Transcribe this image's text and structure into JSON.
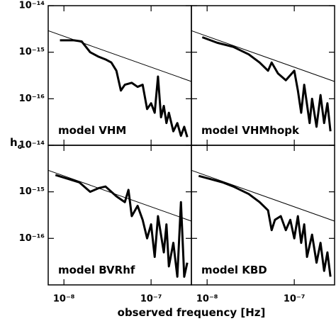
{
  "chart_data": {
    "type": "line",
    "xlabel": "observed frequency [Hz]",
    "ylabel": {
      "main": "h",
      "sub": "c"
    },
    "xscale": "log",
    "yscale": "log",
    "xlim": [
      6.6e-09,
      2.9e-07
    ],
    "ylim": [
      1e-17,
      1e-14
    ],
    "xticks": [
      {
        "value": 1e-08,
        "label": "10⁻⁸"
      },
      {
        "value": 1e-07,
        "label": "10⁻⁷"
      }
    ],
    "yticks": [
      {
        "value": 1e-16,
        "label": "10⁻¹⁶"
      },
      {
        "value": 1e-15,
        "label": "10⁻¹⁵"
      },
      {
        "value": 1e-14,
        "label": "10⁻¹⁴"
      }
    ],
    "panels": [
      {
        "label": "model VHM",
        "series": [
          {
            "color": "#000000",
            "line_width": 3,
            "x": [
              9e-09,
              1.3e-08,
              1.6e-08,
              2e-08,
              2.5e-08,
              3e-08,
              3.5e-08,
              4e-08,
              4.5e-08,
              5e-08,
              6e-08,
              7e-08,
              8e-08,
              9e-08,
              1e-07,
              1.1e-07,
              1.2e-07,
              1.3e-07,
              1.4e-07,
              1.5e-07,
              1.6e-07,
              1.8e-07,
              2e-07,
              2.2e-07,
              2.4e-07,
              2.6e-07
            ],
            "values": [
              1.8e-15,
              1.8e-15,
              1.7e-15,
              1e-15,
              8e-16,
              7e-16,
              6e-16,
              4e-16,
              1.5e-16,
              2e-16,
              2.2e-16,
              1.8e-16,
              2e-16,
              6e-17,
              8e-17,
              5e-17,
              3e-16,
              4e-17,
              7e-17,
              3e-17,
              5e-17,
              2e-17,
              3e-17,
              1.6e-17,
              2.5e-17,
              1.5e-17
            ]
          },
          {
            "color": "#000000",
            "line_width": 1,
            "x": [
              6.6e-09,
              2.9e-07
            ],
            "values": [
              2.9e-15,
              2.35e-16
            ]
          }
        ]
      },
      {
        "label": "model VHMhopk",
        "series": [
          {
            "color": "#000000",
            "line_width": 3,
            "x": [
              8.8e-09,
              1.3e-08,
              2e-08,
              3e-08,
              4e-08,
              5e-08,
              5.5e-08,
              6.5e-08,
              8e-08,
              1e-07,
              1.1e-07,
              1.2e-07,
              1.3e-07,
              1.5e-07,
              1.6e-07,
              1.8e-07,
              2e-07,
              2.2e-07,
              2.4e-07,
              2.6e-07
            ],
            "values": [
              2.1e-15,
              1.6e-15,
              1.3e-15,
              9e-16,
              6e-16,
              4e-16,
              6e-16,
              3.5e-16,
              2.5e-16,
              4e-16,
              1.5e-16,
              5e-17,
              2e-16,
              3e-17,
              1e-16,
              2.5e-17,
              1.2e-16,
              3e-17,
              8e-17,
              2e-17
            ]
          },
          {
            "color": "#000000",
            "line_width": 1,
            "x": [
              6.6e-09,
              2.9e-07
            ],
            "values": [
              2.9e-15,
              2.35e-16
            ]
          }
        ]
      },
      {
        "label": "model BVRhf",
        "series": [
          {
            "color": "#000000",
            "line_width": 3,
            "x": [
              8e-09,
              1.5e-08,
              2e-08,
              2.5e-08,
              3e-08,
              4e-08,
              5e-08,
              5.5e-08,
              6e-08,
              7e-08,
              8e-08,
              9e-08,
              1e-07,
              1.1e-07,
              1.2e-07,
              1.4e-07,
              1.5e-07,
              1.6e-07,
              1.8e-07,
              2e-07,
              2.2e-07,
              2.4e-07,
              2.6e-07
            ],
            "values": [
              2.3e-15,
              1.6e-15,
              1e-15,
              1.2e-15,
              1.3e-15,
              8e-16,
              6e-16,
              1.1e-15,
              3e-16,
              5e-16,
              2.5e-16,
              1e-16,
              2e-16,
              4e-17,
              3e-16,
              5e-17,
              2e-16,
              2.5e-17,
              8e-17,
              1.5e-17,
              6e-16,
              1.5e-17,
              3e-17
            ]
          },
          {
            "color": "#000000",
            "line_width": 1,
            "x": [
              6.6e-09,
              2.9e-07
            ],
            "values": [
              2.9e-15,
              2.35e-16
            ]
          }
        ]
      },
      {
        "label": "model KBD",
        "series": [
          {
            "color": "#000000",
            "line_width": 3,
            "x": [
              8e-09,
              1.5e-08,
              2e-08,
              3e-08,
              4e-08,
              5e-08,
              5.5e-08,
              6e-08,
              7e-08,
              8e-08,
              9e-08,
              1e-07,
              1.1e-07,
              1.2e-07,
              1.3e-07,
              1.4e-07,
              1.6e-07,
              1.8e-07,
              2e-07,
              2.2e-07,
              2.4e-07,
              2.6e-07
            ],
            "values": [
              2.2e-15,
              1.6e-15,
              1.3e-15,
              9e-16,
              6e-16,
              4e-16,
              1.5e-16,
              2.5e-16,
              3e-16,
              1.5e-16,
              2.5e-16,
              1e-16,
              3e-16,
              8e-17,
              2e-16,
              4e-17,
              1.2e-16,
              3e-17,
              8e-17,
              2e-17,
              5e-17,
              1.5e-17
            ]
          },
          {
            "color": "#000000",
            "line_width": 1,
            "x": [
              6.6e-09,
              2.9e-07
            ],
            "values": [
              2.9e-15,
              2.35e-16
            ]
          }
        ]
      }
    ]
  }
}
